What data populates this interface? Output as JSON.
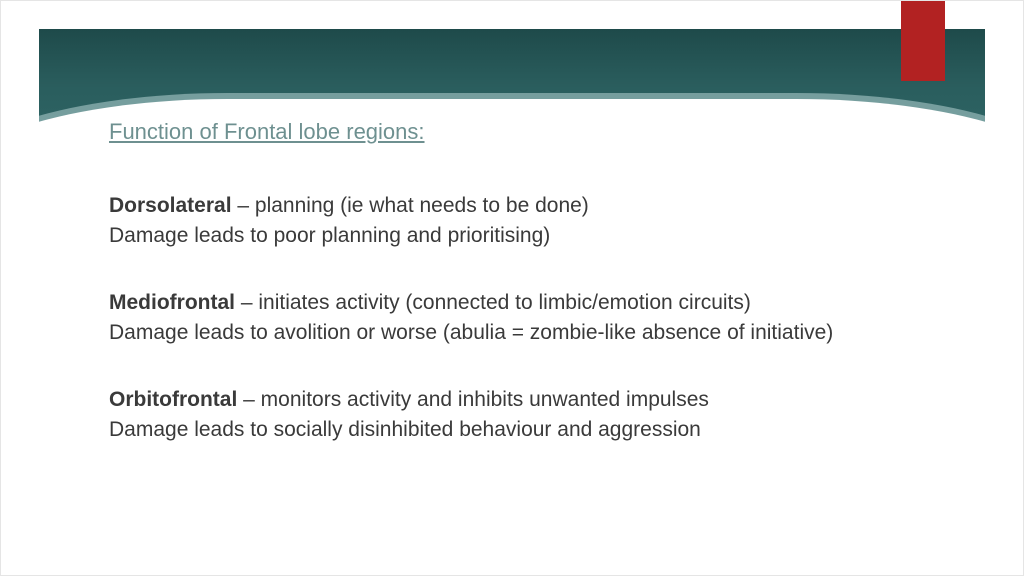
{
  "banner": {
    "gradient_top": "#1e4a4a",
    "gradient_bottom": "#2f6a6a",
    "bookmark_color": "#b22222"
  },
  "heading": "Function of Frontal lobe regions:",
  "sections": [
    {
      "term": "Dorsolateral",
      "desc": " – planning (ie what needs to be done)",
      "damage": "Damage leads to poor planning and prioritising)"
    },
    {
      "term": "Mediofrontal",
      "desc": " – initiates activity (connected to limbic/emotion circuits)",
      "damage": "Damage leads to avolition or worse (abulia = zombie-like absence of initiative)"
    },
    {
      "term": "Orbitofrontal",
      "desc": " – monitors activity and inhibits unwanted impulses",
      "damage": "Damage leads to socially disinhibited behaviour and aggression"
    }
  ]
}
